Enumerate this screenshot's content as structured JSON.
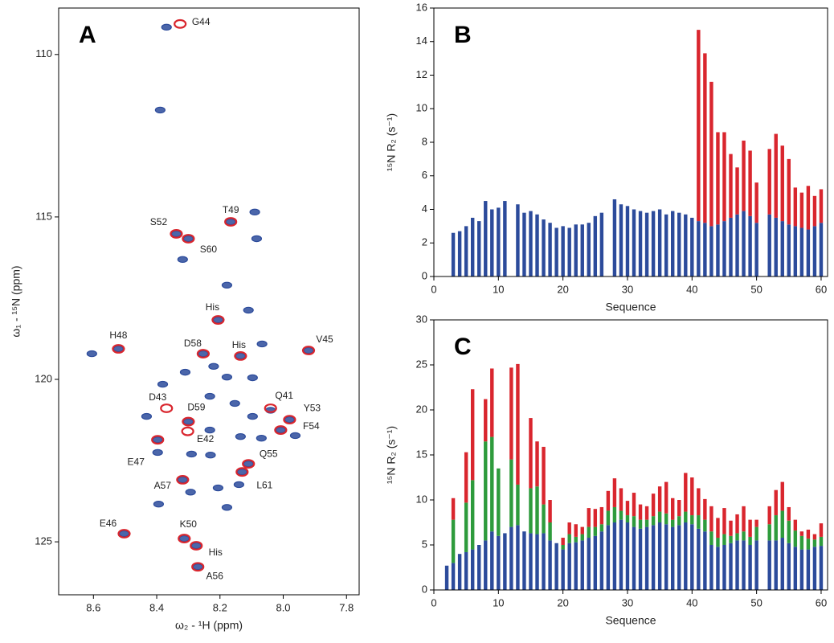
{
  "chart_data": [
    {
      "type": "scatter",
      "panel": "A",
      "xlabel": "ω₂ - ¹H  (ppm)",
      "ylabel": "ω₁ - ¹⁵N  (ppm)",
      "xlim": [
        8.71,
        7.76
      ],
      "ylim": [
        126.63,
        108.57
      ],
      "xticks": [
        8.6,
        8.4,
        8.2,
        {
          "value": 8,
          "label": "8.0"
        },
        7.8
      ],
      "yticks": [
        110,
        115,
        120,
        125
      ],
      "series": [
        {
          "color": "#2c4b9b",
          "x": [
            8.369,
            8.389,
            8.09,
            8.166,
            8.338,
            8.3,
            8.084,
            8.318,
            8.178,
            8.11,
            8.206,
            8.605,
            8.521,
            8.253,
            8.135,
            8.067,
            7.92,
            8.22,
            8.31,
            8.381,
            8.178,
            8.097,
            8.232,
            8.153,
            8.04,
            8.432,
            8.3,
            8.097,
            7.98,
            8.008,
            8.232,
            8.397,
            8.135,
            8.069,
            7.962,
            8.397,
            8.29,
            8.23,
            8.11,
            8.13,
            8.318,
            8.206,
            8.14,
            8.293,
            8.394,
            8.178,
            8.503,
            8.313,
            8.275,
            8.27
          ],
          "values": [
            109.16,
            111.71,
            114.85,
            115.15,
            115.52,
            115.67,
            115.67,
            116.31,
            117.1,
            117.87,
            118.17,
            119.21,
            119.06,
            119.21,
            119.28,
            118.91,
            119.11,
            119.6,
            119.78,
            120.15,
            119.93,
            119.95,
            120.52,
            120.74,
            120.95,
            121.14,
            121.3,
            121.14,
            121.24,
            121.56,
            121.56,
            121.86,
            121.76,
            121.81,
            121.73,
            122.25,
            122.3,
            122.33,
            122.6,
            122.85,
            123.09,
            123.34,
            123.24,
            123.47,
            123.84,
            123.94,
            124.75,
            124.9,
            125.12,
            125.77
          ]
        },
        {
          "color": "#d9262e",
          "x": [
            8.326,
            8.166,
            8.338,
            8.3,
            8.206,
            8.521,
            8.253,
            8.135,
            7.92,
            8.369,
            8.04,
            7.98,
            8.008,
            8.3,
            8.302,
            8.397,
            8.11,
            8.13,
            8.318,
            8.503,
            8.313,
            8.275,
            8.27
          ],
          "values": [
            109.06,
            115.15,
            115.52,
            115.67,
            118.17,
            119.06,
            119.21,
            119.28,
            119.11,
            120.89,
            120.89,
            121.24,
            121.56,
            121.3,
            121.6,
            121.86,
            122.6,
            122.85,
            123.09,
            124.75,
            124.9,
            125.12,
            125.77
          ],
          "labels": [
            "G44",
            "T49",
            "S52",
            "S60",
            "His",
            "H48",
            "D58",
            "His",
            "V45",
            "D43",
            "Q41",
            "Y53",
            "F54",
            "D59",
            "E42",
            "E47",
            "Q55",
            "L61",
            "A57",
            "E46",
            "K50",
            "His",
            "A56"
          ]
        }
      ]
    },
    {
      "type": "bar",
      "panel": "B",
      "xlabel": "Sequence",
      "ylabel": "¹⁵N R₂ (s⁻¹)",
      "xlim": [
        0,
        61
      ],
      "ylim": [
        0,
        16
      ],
      "xticks": [
        0,
        10,
        20,
        30,
        40,
        50,
        60
      ],
      "yticks": [
        0,
        2,
        4,
        6,
        8,
        10,
        12,
        14,
        16
      ],
      "x": [
        3,
        4,
        5,
        6,
        7,
        8,
        9,
        10,
        11,
        13,
        14,
        15,
        16,
        17,
        18,
        19,
        20,
        21,
        22,
        23,
        24,
        25,
        26,
        28,
        29,
        30,
        31,
        32,
        33,
        34,
        35,
        36,
        37,
        38,
        39,
        40,
        41,
        42,
        43,
        44,
        45,
        46,
        47,
        48,
        49,
        50,
        52,
        53,
        54,
        55,
        56,
        57,
        58,
        59,
        60
      ],
      "series": [
        {
          "color": "#2c4b9b",
          "values": [
            2.6,
            2.7,
            3.0,
            3.5,
            3.3,
            4.5,
            4.0,
            4.1,
            4.5,
            4.3,
            3.8,
            3.9,
            3.7,
            3.4,
            3.2,
            2.9,
            3.0,
            2.9,
            3.1,
            3.1,
            3.2,
            3.6,
            3.8,
            4.6,
            4.3,
            4.2,
            4.0,
            3.9,
            3.8,
            3.9,
            4.0,
            3.7,
            3.9,
            3.8,
            3.7,
            3.5,
            3.3,
            3.2,
            3.0,
            3.1,
            3.3,
            3.5,
            3.7,
            3.9,
            3.6,
            3.2,
            3.7,
            3.5,
            3.3,
            3.1,
            3.0,
            2.9,
            2.8,
            3.0,
            3.2
          ]
        },
        {
          "color": "#d9262e",
          "values": [
            null,
            null,
            null,
            null,
            null,
            null,
            null,
            null,
            null,
            null,
            null,
            null,
            null,
            null,
            null,
            null,
            null,
            null,
            null,
            null,
            null,
            null,
            null,
            null,
            null,
            null,
            null,
            null,
            null,
            null,
            null,
            null,
            null,
            null,
            null,
            null,
            11.4,
            10.1,
            8.6,
            5.5,
            5.3,
            3.8,
            2.8,
            4.2,
            3.9,
            2.4,
            3.9,
            5.0,
            4.5,
            3.9,
            2.3,
            2.1,
            2.6,
            1.8,
            2.0
          ]
        }
      ]
    },
    {
      "type": "bar",
      "panel": "C",
      "xlabel": "Sequence",
      "ylabel": "¹⁵N R₂ (s⁻¹)",
      "xlim": [
        0,
        61
      ],
      "ylim": [
        0,
        30
      ],
      "xticks": [
        0,
        10,
        20,
        30,
        40,
        50,
        60
      ],
      "yticks": [
        0,
        5,
        10,
        15,
        20,
        25,
        30
      ],
      "x": [
        2,
        3,
        4,
        5,
        6,
        7,
        8,
        9,
        10,
        11,
        12,
        13,
        14,
        15,
        16,
        17,
        18,
        19,
        20,
        21,
        22,
        23,
        24,
        25,
        26,
        27,
        28,
        29,
        30,
        31,
        32,
        33,
        34,
        35,
        36,
        37,
        38,
        39,
        40,
        41,
        42,
        43,
        44,
        45,
        46,
        47,
        48,
        49,
        50,
        52,
        53,
        54,
        55,
        56,
        57,
        58,
        59,
        60
      ],
      "series": [
        {
          "color": "#2c4b9b",
          "values": [
            2.7,
            3.0,
            4.0,
            4.2,
            4.5,
            5.0,
            5.5,
            6.5,
            6.0,
            6.3,
            7.0,
            7.2,
            6.5,
            6.3,
            6.2,
            6.3,
            5.5,
            5.2,
            4.5,
            5.2,
            5.3,
            5.5,
            5.8,
            6.0,
            6.5,
            7.2,
            7.5,
            7.8,
            7.5,
            7.0,
            6.8,
            7.0,
            7.2,
            7.5,
            7.3,
            7.0,
            7.2,
            7.5,
            7.3,
            6.8,
            6.5,
            5.0,
            4.8,
            5.0,
            5.2,
            5.5,
            5.5,
            5.0,
            5.5,
            5.5,
            5.5,
            5.8,
            5.2,
            4.8,
            4.5,
            4.5,
            4.8,
            4.9
          ]
        },
        {
          "color": "#2e9b3c",
          "values": [
            null,
            4.8,
            null,
            5.5,
            7.7,
            null,
            11.0,
            10.5,
            7.5,
            null,
            7.5,
            4.5,
            null,
            5.0,
            5.3,
            3.2,
            2.0,
            null,
            0.5,
            1.0,
            0.6,
            0.7,
            1.2,
            1.0,
            0.8,
            1.6,
            1.7,
            1.0,
            0.8,
            1.2,
            1.0,
            0.8,
            1.0,
            1.2,
            1.2,
            0.8,
            1.0,
            1.2,
            1.0,
            1.5,
            1.3,
            1.5,
            1.0,
            1.2,
            0.8,
            0.8,
            1.0,
            0.9,
            1.5,
            1.8,
            2.8,
            3.0,
            2.5,
            1.8,
            1.5,
            1.2,
            0.8,
            1.0
          ]
        },
        {
          "color": "#d9262e",
          "values": [
            null,
            2.4,
            null,
            5.6,
            10.1,
            null,
            4.7,
            7.6,
            null,
            null,
            10.2,
            13.4,
            null,
            7.8,
            5.0,
            6.4,
            2.5,
            null,
            0.8,
            1.3,
            1.4,
            0.8,
            2.1,
            2.0,
            1.9,
            2.2,
            3.2,
            2.5,
            1.6,
            2.6,
            1.7,
            1.5,
            2.5,
            2.8,
            3.5,
            2.4,
            1.8,
            4.3,
            4.2,
            3.0,
            2.3,
            2.8,
            2.2,
            2.9,
            1.7,
            2.1,
            2.8,
            1.9,
            0.8,
            2.0,
            2.8,
            3.2,
            1.5,
            1.2,
            0.5,
            1.0,
            0.6,
            1.5
          ]
        }
      ]
    }
  ]
}
